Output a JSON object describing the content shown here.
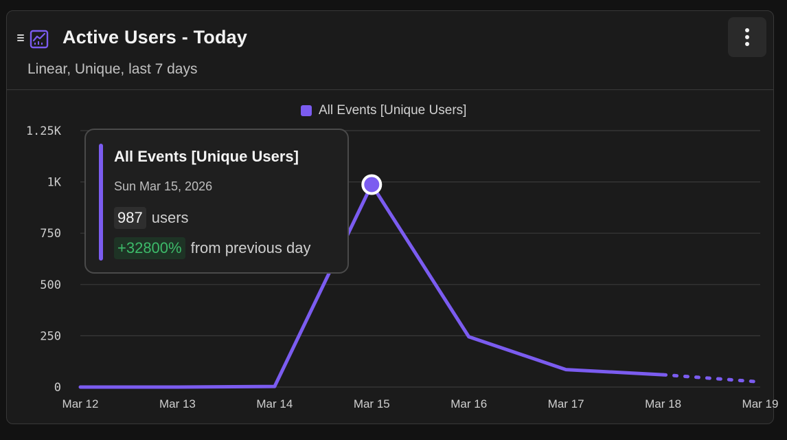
{
  "header": {
    "title": "Active Users - Today",
    "subtitle": "Linear, Unique, last 7 days",
    "chart_icon": "line-chart-icon",
    "drag_icon": "drag-handle-icon",
    "menu_icon": "more-vertical-icon"
  },
  "colors": {
    "accent": "#7b5cf0",
    "grid": "#3a3a3a",
    "positive": "#3dbb6a"
  },
  "tooltip": {
    "series": "All Events [Unique Users]",
    "date": "Sun Mar 15, 2026",
    "value": "987",
    "value_unit": "users",
    "change": "+32800%",
    "change_text": "from previous day"
  },
  "chart_data": {
    "type": "line",
    "title": "Active Users - Today",
    "subtitle": "Linear, Unique, last 7 days",
    "xlabel": "",
    "ylabel": "",
    "categories": [
      "Mar 12",
      "Mar 13",
      "Mar 14",
      "Mar 15",
      "Mar 16",
      "Mar 17",
      "Mar 18",
      "Mar 19"
    ],
    "series": [
      {
        "name": "All Events [Unique Users]",
        "values": [
          0,
          0,
          3,
          987,
          245,
          85,
          60,
          25
        ],
        "partial_from_index": 6
      }
    ],
    "ylim": [
      0,
      1250
    ],
    "yticks": [
      0,
      250,
      500,
      750,
      1000,
      1250
    ],
    "ytick_labels": [
      "0",
      "250",
      "500",
      "750",
      "1K",
      "1.25K"
    ],
    "highlight_index": 3,
    "grid": true,
    "legend": "top-center"
  }
}
